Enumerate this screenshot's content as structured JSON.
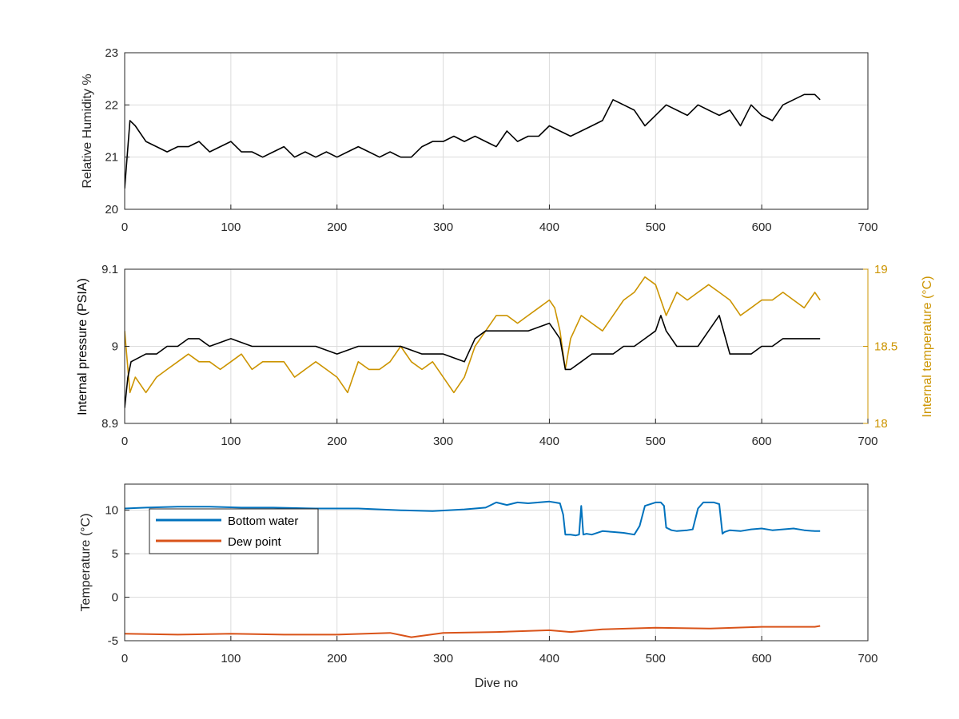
{
  "colors": {
    "rh_series": "#000000",
    "pressure_series": "#000000",
    "temp_series": "#cc9400",
    "bottom_water": "#0072bd",
    "dew_point": "#d95319",
    "grid": "#dcdcdc",
    "axis": "#262626"
  },
  "chart_data": [
    {
      "type": "line",
      "panel": "top",
      "ylabel": "Relative Humidity %",
      "xlabel": "",
      "xlim": [
        0,
        700
      ],
      "ylim": [
        20,
        23
      ],
      "xticks": [
        "0",
        "100",
        "200",
        "300",
        "400",
        "500",
        "600",
        "700"
      ],
      "yticks": [
        "20",
        "21",
        "22",
        "23"
      ],
      "grid": true,
      "series": [
        {
          "key": "rh",
          "x": [
            0,
            5,
            10,
            20,
            30,
            40,
            50,
            60,
            70,
            80,
            90,
            100,
            110,
            120,
            130,
            140,
            150,
            160,
            170,
            180,
            190,
            200,
            210,
            220,
            230,
            240,
            250,
            260,
            270,
            280,
            290,
            300,
            310,
            320,
            330,
            340,
            350,
            360,
            370,
            380,
            390,
            400,
            410,
            420,
            430,
            440,
            450,
            460,
            470,
            480,
            490,
            500,
            510,
            520,
            530,
            540,
            550,
            560,
            570,
            580,
            590,
            600,
            610,
            620,
            630,
            640,
            650,
            655
          ],
          "y": [
            20.4,
            21.7,
            21.6,
            21.3,
            21.2,
            21.1,
            21.2,
            21.2,
            21.3,
            21.1,
            21.2,
            21.3,
            21.1,
            21.1,
            21.0,
            21.1,
            21.2,
            21.0,
            21.1,
            21.0,
            21.1,
            21.0,
            21.1,
            21.2,
            21.1,
            21.0,
            21.1,
            21.0,
            21.0,
            21.2,
            21.3,
            21.3,
            21.4,
            21.3,
            21.4,
            21.3,
            21.2,
            21.5,
            21.3,
            21.4,
            21.4,
            21.6,
            21.5,
            21.4,
            21.5,
            21.6,
            21.7,
            22.1,
            22.0,
            21.9,
            21.6,
            21.8,
            22.0,
            21.9,
            21.8,
            22.0,
            21.9,
            21.8,
            21.9,
            21.6,
            22.0,
            21.8,
            21.7,
            22.0,
            22.1,
            22.2,
            22.2,
            22.1
          ]
        }
      ]
    },
    {
      "type": "line",
      "panel": "middle",
      "ylabel": "Internal pressure (PSIA)",
      "y2label": "Internal temperature (°C)",
      "xlabel": "",
      "xlim": [
        0,
        700
      ],
      "ylim": [
        8.9,
        9.1
      ],
      "y2lim": [
        18,
        19
      ],
      "xticks": [
        "0",
        "100",
        "200",
        "300",
        "400",
        "500",
        "600",
        "700"
      ],
      "yticks": [
        "8.9",
        "9",
        "9.1"
      ],
      "y2ticks": [
        "18",
        "18.5",
        "19"
      ],
      "grid": true,
      "series": [
        {
          "key": "pressure",
          "axis": "left",
          "x": [
            0,
            3,
            6,
            20,
            30,
            40,
            50,
            60,
            70,
            80,
            100,
            120,
            140,
            160,
            180,
            200,
            220,
            240,
            260,
            280,
            300,
            320,
            330,
            340,
            360,
            380,
            400,
            405,
            410,
            415,
            420,
            430,
            440,
            450,
            460,
            470,
            480,
            490,
            500,
            505,
            510,
            520,
            530,
            540,
            550,
            560,
            570,
            580,
            590,
            600,
            610,
            620,
            630,
            640,
            650,
            655
          ],
          "y": [
            8.92,
            8.96,
            8.98,
            8.99,
            8.99,
            9.0,
            9.0,
            9.01,
            9.01,
            9.0,
            9.01,
            9.0,
            9.0,
            9.0,
            9.0,
            8.99,
            9.0,
            9.0,
            9.0,
            8.99,
            8.99,
            8.98,
            9.01,
            9.02,
            9.02,
            9.02,
            9.03,
            9.02,
            9.01,
            8.97,
            8.97,
            8.98,
            8.99,
            8.99,
            8.99,
            9.0,
            9.0,
            9.01,
            9.02,
            9.04,
            9.02,
            9.0,
            9.0,
            9.0,
            9.02,
            9.04,
            8.99,
            8.99,
            8.99,
            9.0,
            9.0,
            9.01,
            9.01,
            9.01,
            9.01,
            9.01
          ]
        },
        {
          "key": "temperature",
          "axis": "right",
          "x": [
            0,
            5,
            10,
            20,
            30,
            40,
            50,
            60,
            70,
            80,
            90,
            100,
            110,
            120,
            130,
            140,
            150,
            160,
            170,
            180,
            190,
            200,
            210,
            220,
            230,
            240,
            250,
            260,
            270,
            280,
            290,
            300,
            310,
            320,
            330,
            340,
            350,
            360,
            370,
            380,
            390,
            400,
            405,
            410,
            415,
            420,
            430,
            440,
            450,
            460,
            470,
            480,
            490,
            500,
            510,
            520,
            530,
            540,
            550,
            560,
            570,
            580,
            590,
            600,
            610,
            620,
            630,
            640,
            650,
            655
          ],
          "y": [
            18.6,
            18.2,
            18.3,
            18.2,
            18.3,
            18.35,
            18.4,
            18.45,
            18.4,
            18.4,
            18.35,
            18.4,
            18.45,
            18.35,
            18.4,
            18.4,
            18.4,
            18.3,
            18.35,
            18.4,
            18.35,
            18.3,
            18.2,
            18.4,
            18.35,
            18.35,
            18.4,
            18.5,
            18.4,
            18.35,
            18.4,
            18.3,
            18.2,
            18.3,
            18.5,
            18.6,
            18.7,
            18.7,
            18.65,
            18.7,
            18.75,
            18.8,
            18.75,
            18.6,
            18.35,
            18.55,
            18.7,
            18.65,
            18.6,
            18.7,
            18.8,
            18.85,
            18.95,
            18.9,
            18.7,
            18.85,
            18.8,
            18.85,
            18.9,
            18.85,
            18.8,
            18.7,
            18.75,
            18.8,
            18.8,
            18.85,
            18.8,
            18.75,
            18.85,
            18.8
          ]
        }
      ]
    },
    {
      "type": "line",
      "panel": "bottom",
      "ylabel": "Temperature (°C)",
      "xlabel": "Dive no",
      "xlim": [
        0,
        700
      ],
      "ylim": [
        -5,
        13
      ],
      "xticks": [
        "0",
        "100",
        "200",
        "300",
        "400",
        "500",
        "600",
        "700"
      ],
      "yticks": [
        "-5",
        "0",
        "5",
        "10"
      ],
      "grid": true,
      "legend_position": "top-left",
      "series": [
        {
          "key": "bottom_water",
          "name": "Bottom water",
          "x": [
            0,
            20,
            50,
            80,
            110,
            140,
            180,
            220,
            260,
            290,
            320,
            340,
            350,
            360,
            370,
            380,
            390,
            400,
            405,
            410,
            413,
            415,
            420,
            425,
            428,
            430,
            432,
            435,
            440,
            450,
            460,
            470,
            480,
            485,
            490,
            500,
            505,
            508,
            510,
            515,
            520,
            530,
            535,
            540,
            545,
            555,
            560,
            563,
            565,
            570,
            580,
            590,
            600,
            610,
            620,
            630,
            640,
            650,
            655
          ],
          "y": [
            10.2,
            10.3,
            10.4,
            10.4,
            10.3,
            10.3,
            10.2,
            10.2,
            10.0,
            9.9,
            10.1,
            10.3,
            10.9,
            10.6,
            10.9,
            10.8,
            10.9,
            11.0,
            10.9,
            10.8,
            9.5,
            7.2,
            7.2,
            7.1,
            7.2,
            10.5,
            7.2,
            7.3,
            7.2,
            7.6,
            7.5,
            7.4,
            7.2,
            8.2,
            10.5,
            10.9,
            10.9,
            10.5,
            8.0,
            7.7,
            7.6,
            7.7,
            7.8,
            10.2,
            10.9,
            10.9,
            10.7,
            7.3,
            7.5,
            7.7,
            7.6,
            7.8,
            7.9,
            7.7,
            7.8,
            7.9,
            7.7,
            7.6,
            7.6
          ]
        },
        {
          "key": "dew_point",
          "name": "Dew point",
          "x": [
            0,
            50,
            100,
            150,
            200,
            250,
            270,
            300,
            350,
            400,
            420,
            450,
            500,
            550,
            600,
            650,
            655
          ],
          "y": [
            -4.2,
            -4.3,
            -4.2,
            -4.3,
            -4.3,
            -4.1,
            -4.6,
            -4.1,
            -4.0,
            -3.8,
            -4.0,
            -3.7,
            -3.5,
            -3.6,
            -3.4,
            -3.4,
            -3.3
          ]
        }
      ]
    }
  ]
}
